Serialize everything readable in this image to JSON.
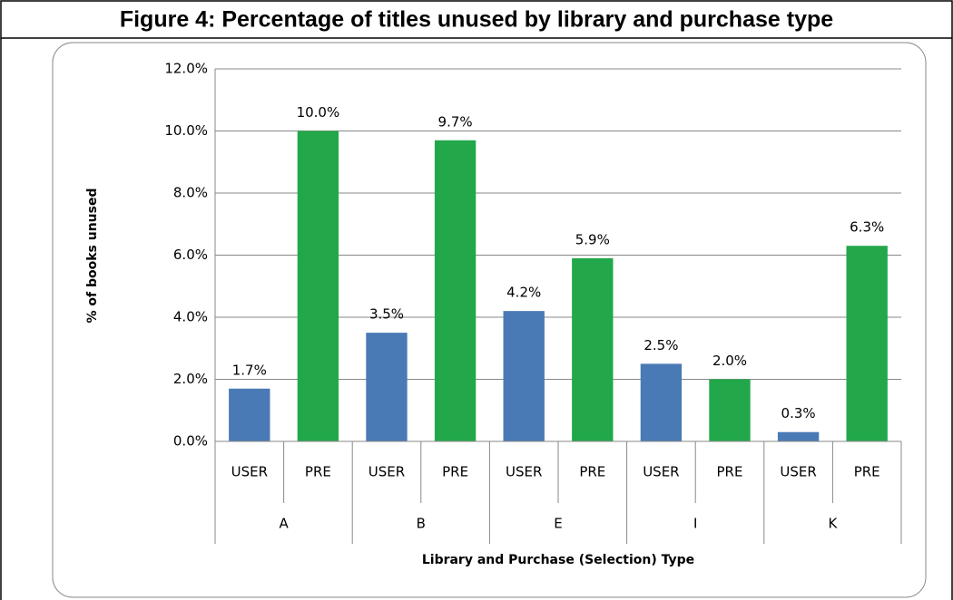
{
  "chart_data": {
    "type": "bar",
    "title": "Figure 4: Percentage of titles unused by library and purchase type",
    "y_label": "% of books unused",
    "x_label": "Library and Purchase (Selection) Type",
    "groups": [
      "A",
      "B",
      "E",
      "I",
      "K"
    ],
    "categories": [
      "USER",
      "PRE",
      "USER",
      "PRE",
      "USER",
      "PRE",
      "USER",
      "PRE",
      "USER",
      "PRE"
    ],
    "values": [
      1.7,
      10.0,
      3.5,
      9.7,
      4.2,
      5.9,
      2.5,
      2.0,
      0.3,
      6.3
    ],
    "value_labels": [
      "1.7%",
      "10.0%",
      "3.5%",
      "9.7%",
      "4.2%",
      "5.9%",
      "2.5%",
      "2.0%",
      "0.3%",
      "6.3%"
    ],
    "bar_colors": [
      "#4a7ab5",
      "#22a84a",
      "#4a7ab5",
      "#22a84a",
      "#4a7ab5",
      "#22a84a",
      "#4a7ab5",
      "#22a84a",
      "#4a7ab5",
      "#22a84a"
    ],
    "ylim": [
      0,
      12
    ],
    "yticks": [
      {
        "value": 0,
        "label": "0.0%"
      },
      {
        "value": 2,
        "label": "2.0%"
      },
      {
        "value": 4,
        "label": "4.0%"
      },
      {
        "value": 6,
        "label": "6.0%"
      },
      {
        "value": 8,
        "label": "8.0%"
      },
      {
        "value": 10,
        "label": "10.0%"
      },
      {
        "value": 12,
        "label": "12.0%"
      }
    ],
    "grid": true
  }
}
